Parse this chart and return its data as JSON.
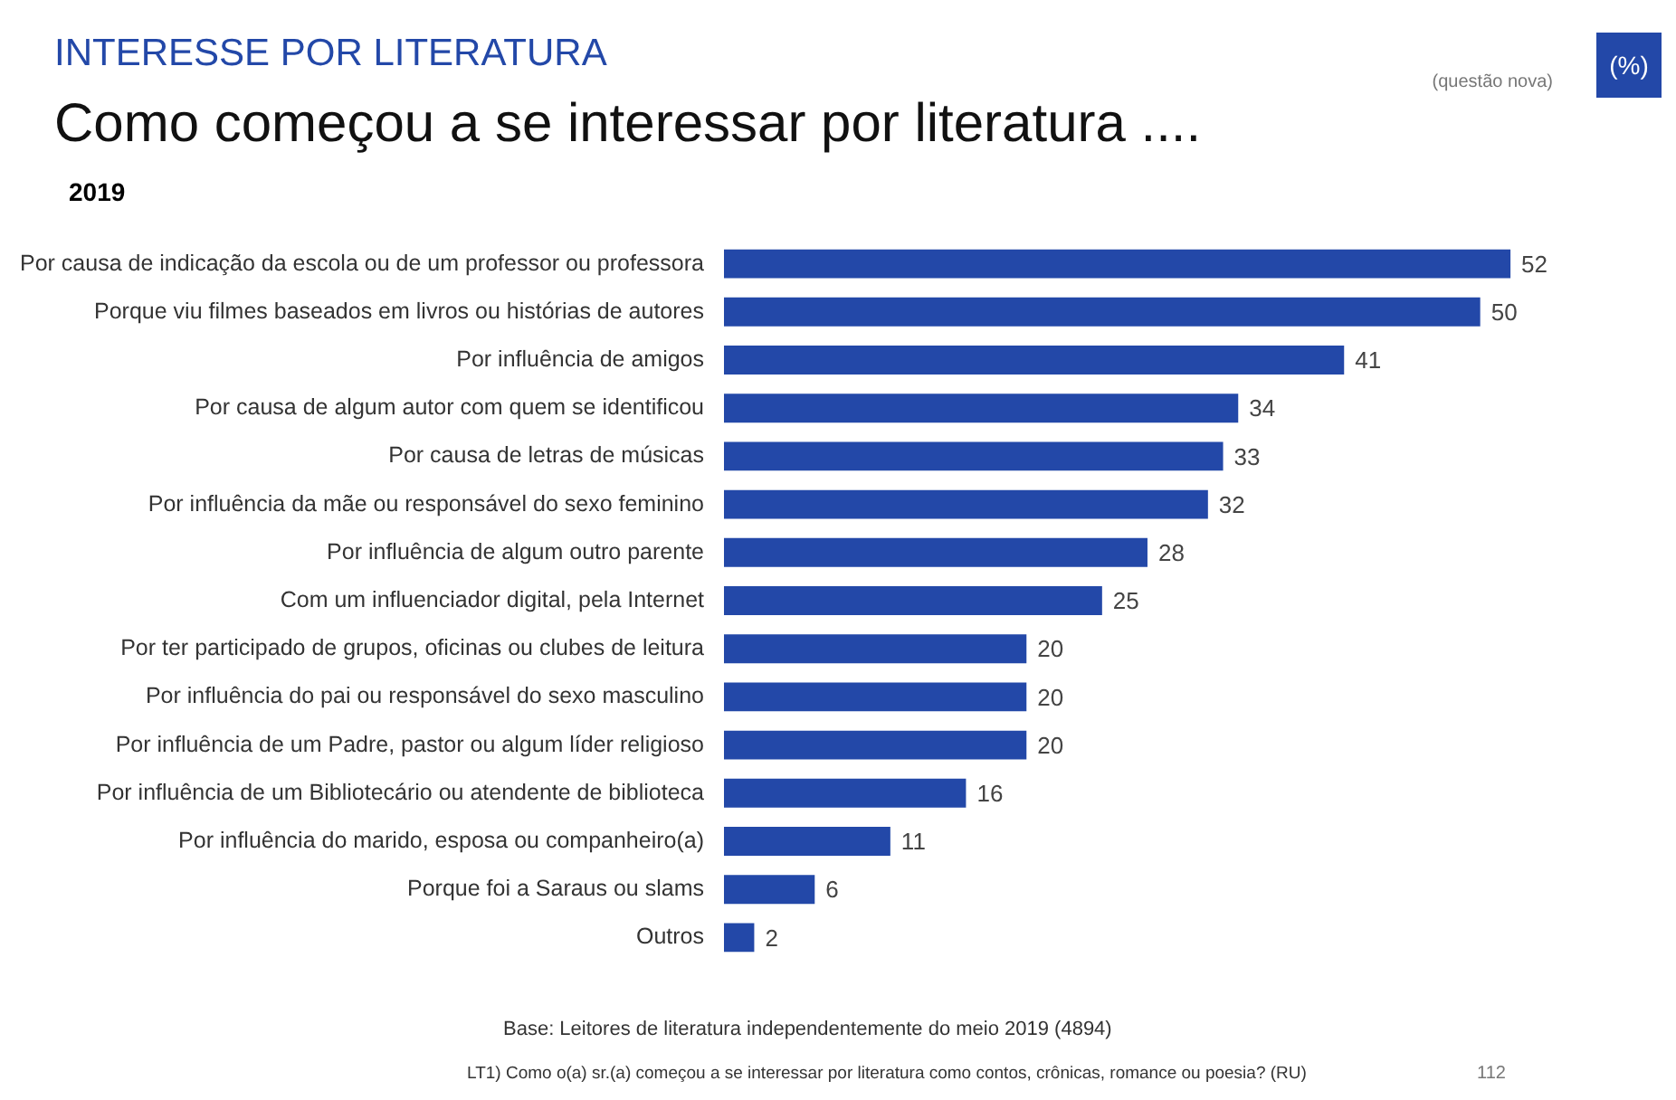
{
  "chart_data": {
    "type": "bar",
    "orientation": "horizontal",
    "title": "INTERESSE POR LITERATURA",
    "subtitle": "Como começou a se interessar por literatura ....",
    "categories": [
      "Por causa de indicação da escola ou de um professor ou professora",
      "Porque viu filmes baseados em livros ou histórias de autores",
      "Por influência de amigos",
      "Por causa de algum autor com quem se identificou",
      "Por causa de letras de músicas",
      "Por influência da mãe ou responsável do sexo feminino",
      "Por influência de algum outro parente",
      "Com um influenciador digital, pela Internet",
      "Por ter participado de grupos, oficinas ou clubes de leitura",
      "Por influência do pai ou responsável do sexo masculino",
      "Por influência de um Padre, pastor ou algum líder religioso",
      "Por influência de um Bibliotecário ou atendente de biblioteca",
      "Por influência do marido, esposa ou companheiro(a)",
      "Porque foi a Saraus ou slams",
      "Outros"
    ],
    "values": [
      52,
      50,
      41,
      34,
      33,
      32,
      28,
      25,
      20,
      20,
      20,
      16,
      11,
      6,
      2
    ],
    "color": "#2348a8",
    "data_labels": true,
    "legend": false,
    "annotations": [
      "(questão nova)",
      "(%)",
      "2019",
      "Base: Leitores de literatura independentemente do meio 2019 (4894)",
      "LT1) Como o(a) sr.(a) começou a se interessar por literatura como contos, crônicas, romance ou poesia? (RU)",
      "112"
    ]
  }
}
